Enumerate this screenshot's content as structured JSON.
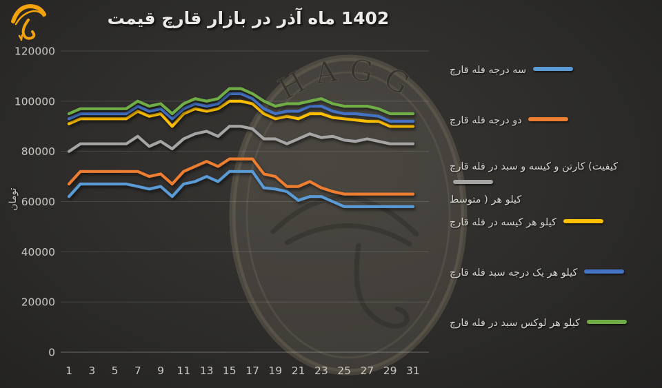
{
  "header": {
    "title": "قیمت قارچ بازار در آذر ماه 1402"
  },
  "logo": {
    "name": "hagg-mushroom-logo",
    "color": "#F2A30B"
  },
  "watermark": {
    "text": "HAGG"
  },
  "chart_data": {
    "type": "line",
    "title": "قیمت قارچ بازار در آذر ماه 1402",
    "ylabel": "تومان",
    "xlabel": "",
    "x": [
      1,
      2,
      3,
      4,
      5,
      6,
      7,
      8,
      9,
      10,
      11,
      12,
      13,
      14,
      15,
      16,
      17,
      18,
      19,
      20,
      21,
      22,
      23,
      24,
      25,
      26,
      27,
      28,
      29,
      30,
      31
    ],
    "xticks": [
      1,
      3,
      5,
      7,
      9,
      11,
      13,
      15,
      17,
      19,
      21,
      23,
      25,
      27,
      29,
      31
    ],
    "yticks": [
      0,
      20000,
      40000,
      60000,
      80000,
      100000,
      120000
    ],
    "ylim": [
      0,
      120000
    ],
    "grid": "horizontal",
    "legend_position": "right",
    "background": "#2B2A28",
    "series": [
      {
        "name": "قارچ فله درجه سه",
        "color": "#5B9BD5",
        "values": [
          62000,
          67000,
          67000,
          67000,
          67000,
          67000,
          66000,
          65000,
          66000,
          62000,
          67000,
          68000,
          70000,
          68000,
          72000,
          72000,
          72000,
          65500,
          65000,
          64000,
          60500,
          62000,
          62000,
          60000,
          58000,
          58000,
          58000,
          58000,
          58000,
          58000,
          58000
        ]
      },
      {
        "name": "قارچ فله درجه دو",
        "color": "#ED7D31",
        "values": [
          67000,
          72000,
          72000,
          72000,
          72000,
          72000,
          72000,
          70000,
          71000,
          67000,
          72000,
          74000,
          76000,
          74000,
          77000,
          77000,
          77000,
          71000,
          70000,
          66000,
          66000,
          68000,
          65500,
          64000,
          63000,
          63000,
          63000,
          63000,
          63000,
          63000,
          63000
        ]
      },
      {
        "name": "قارچ فله در سبد و کیسه و کارتن (کیفیت",
        "name_line2": "متوسط ) هر کیلو",
        "color": "#A5A5A5",
        "values": [
          80000,
          83000,
          83000,
          83000,
          83000,
          83000,
          86000,
          82000,
          84000,
          81000,
          85000,
          87000,
          88000,
          86000,
          90000,
          90000,
          89000,
          85000,
          85000,
          83000,
          85000,
          87000,
          85500,
          86000,
          84500,
          84000,
          85000,
          84000,
          83000,
          83000,
          83000
        ]
      },
      {
        "name": "قارچ فله در کیسه هر کیلو",
        "color": "#FFC000",
        "values": [
          91000,
          93000,
          93000,
          93000,
          93000,
          93000,
          96000,
          94000,
          95000,
          90000,
          95000,
          97000,
          96000,
          97000,
          100000,
          100000,
          99000,
          95000,
          93000,
          94000,
          93000,
          95000,
          95000,
          93500,
          93000,
          92500,
          92000,
          92000,
          90000,
          90000,
          90000
        ]
      },
      {
        "name": "قارچ فله سبد درجه یک هر کیلو",
        "color": "#4472C4",
        "values": [
          93000,
          95000,
          95000,
          95000,
          95000,
          95000,
          98000,
          96000,
          97000,
          93000,
          97000,
          99000,
          98000,
          99000,
          103000,
          103000,
          101000,
          97000,
          95000,
          96000,
          96000,
          98000,
          98000,
          96000,
          95000,
          95000,
          94500,
          94000,
          92000,
          92000,
          92000
        ]
      },
      {
        "name": "قارچ فله در سبد لوکس هر کیلو",
        "color": "#70AD47",
        "values": [
          95000,
          97000,
          97000,
          97000,
          97000,
          97000,
          100000,
          98000,
          99000,
          95000,
          99000,
          101000,
          100000,
          101000,
          105000,
          105000,
          103000,
          100000,
          98000,
          99000,
          99000,
          100000,
          101000,
          99000,
          98000,
          98000,
          98000,
          97000,
          95000,
          95000,
          95000
        ]
      }
    ]
  }
}
